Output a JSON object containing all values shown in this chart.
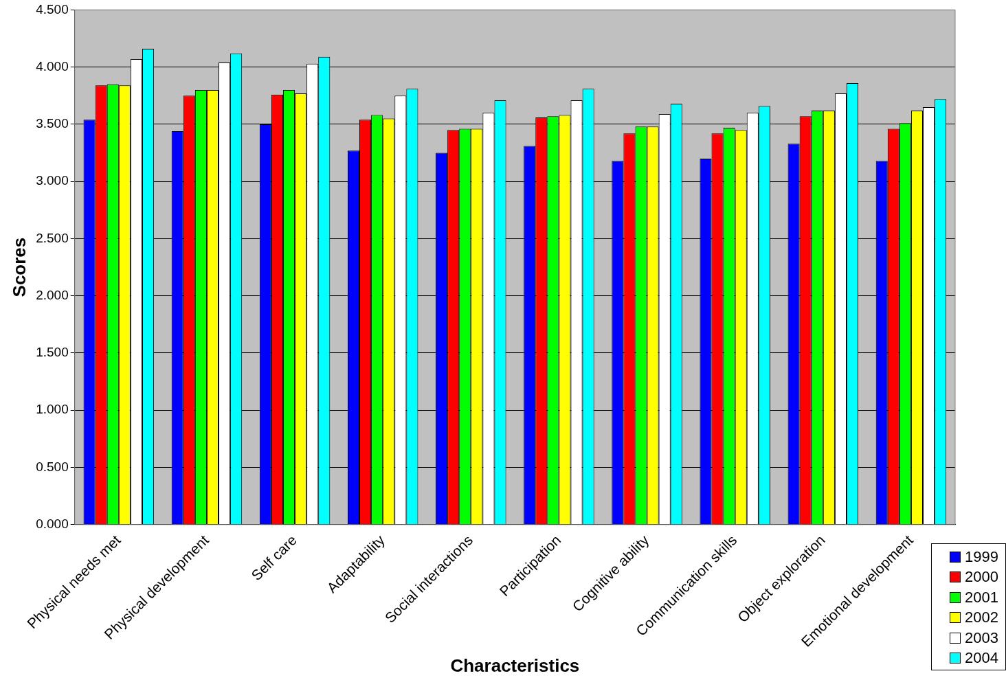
{
  "chart_data": {
    "type": "bar",
    "xlabel": "Characteristics",
    "ylabel": "Scores",
    "categories": [
      "Physical needs met",
      "Physical development",
      "Self care",
      "Adaptability",
      "Social interactions",
      "Participation",
      "Cognitive ability",
      "Communication skills",
      "Object exploration",
      "Emotional development"
    ],
    "series": [
      {
        "name": "1999",
        "color": "#0000ff",
        "values": [
          3.54,
          3.44,
          3.5,
          3.27,
          3.25,
          3.31,
          3.18,
          3.2,
          3.33,
          3.18
        ]
      },
      {
        "name": "2000",
        "color": "#ff0000",
        "values": [
          3.84,
          3.75,
          3.76,
          3.54,
          3.45,
          3.56,
          3.42,
          3.42,
          3.57,
          3.46
        ]
      },
      {
        "name": "2001",
        "color": "#00ff00",
        "values": [
          3.85,
          3.8,
          3.8,
          3.58,
          3.46,
          3.57,
          3.48,
          3.47,
          3.62,
          3.51
        ]
      },
      {
        "name": "2002",
        "color": "#ffff00",
        "values": [
          3.84,
          3.8,
          3.77,
          3.55,
          3.46,
          3.58,
          3.48,
          3.45,
          3.62,
          3.62
        ]
      },
      {
        "name": "2003",
        "color": "#ffffff",
        "values": [
          4.07,
          4.04,
          4.03,
          3.75,
          3.6,
          3.71,
          3.59,
          3.6,
          3.77,
          3.65
        ]
      },
      {
        "name": "2004",
        "color": "#00ffff",
        "values": [
          4.16,
          4.12,
          4.09,
          3.81,
          3.71,
          3.81,
          3.68,
          3.66,
          3.86,
          3.72
        ]
      }
    ],
    "ylim": [
      0,
      4.5
    ],
    "yticks": [
      {
        "value": 0,
        "label": "0.000"
      },
      {
        "value": 0.5,
        "label": "0.500"
      },
      {
        "value": 1,
        "label": "1.000"
      },
      {
        "value": 1.5,
        "label": "1.500"
      },
      {
        "value": 2,
        "label": "2.000"
      },
      {
        "value": 2.5,
        "label": "2.500"
      },
      {
        "value": 3,
        "label": "3.000"
      },
      {
        "value": 3.5,
        "label": "3.500"
      },
      {
        "value": 4,
        "label": "4.000"
      },
      {
        "value": 4.5,
        "label": "4.500"
      }
    ],
    "grid": "y",
    "legend": "bottom right"
  }
}
